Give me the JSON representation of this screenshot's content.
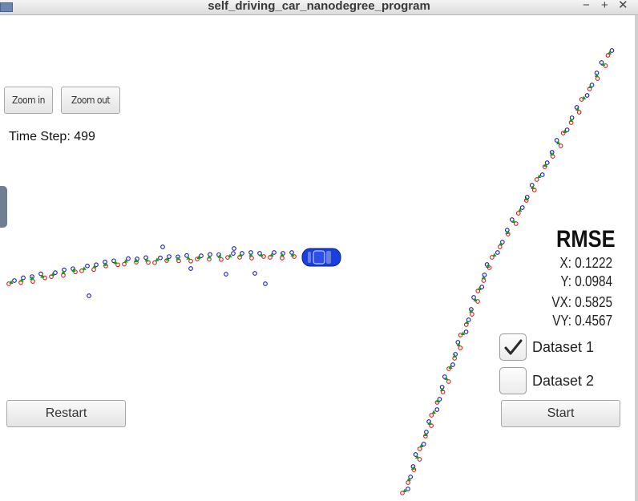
{
  "window": {
    "title": "self_driving_car_nanodegree_program",
    "minimize": "−",
    "maximize": "+",
    "close": "✕"
  },
  "controls": {
    "zoom_in": "Zoom in",
    "zoom_out": "Zoom out",
    "time_step": "Time Step: 499",
    "restart": "Restart",
    "start": "Start"
  },
  "rmse": {
    "title": "RMSE",
    "x": "X: 0.1222",
    "y": "Y: 0.0984",
    "vx": "VX: 0.5825",
    "vy": "VY: 0.4567"
  },
  "datasets": [
    {
      "label": "Dataset 1",
      "checked": true
    },
    {
      "label": "Dataset 2",
      "checked": false
    }
  ],
  "colors": {
    "lidar": "#d21e1e",
    "radar": "#1a1ab4",
    "estimate": "#10a010",
    "car": "#1a3fe0"
  }
}
